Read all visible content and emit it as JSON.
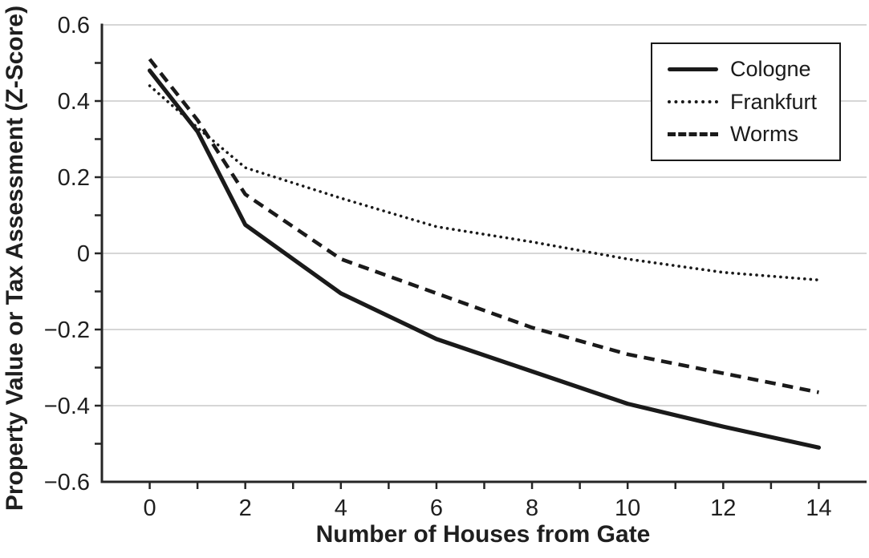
{
  "chart_data": {
    "type": "line",
    "title": "",
    "xlabel": "Number of Houses from Gate",
    "ylabel": "Property Value or Tax Assessment (Z-Score)",
    "x": [
      0,
      1,
      2,
      4,
      6,
      8,
      10,
      12,
      14
    ],
    "series": [
      {
        "name": "Cologne",
        "style": "solid",
        "values": [
          0.48,
          0.32,
          0.075,
          -0.105,
          -0.225,
          -0.31,
          -0.395,
          -0.455,
          -0.51
        ]
      },
      {
        "name": "Frankfurt",
        "style": "dotted",
        "values": [
          0.44,
          0.33,
          0.225,
          0.145,
          0.07,
          0.03,
          -0.015,
          -0.05,
          -0.07
        ]
      },
      {
        "name": "Worms",
        "style": "dashed",
        "values": [
          0.51,
          0.35,
          0.155,
          -0.015,
          -0.105,
          -0.195,
          -0.265,
          -0.315,
          -0.365
        ]
      }
    ],
    "xlim": [
      -1,
      15
    ],
    "ylim": [
      -0.6,
      0.6
    ],
    "xticks": {
      "labeled_values": [
        0,
        2,
        4,
        6,
        8,
        10,
        12,
        14
      ],
      "labels": [
        "0",
        "2",
        "4",
        "6",
        "8",
        "10",
        "12",
        "14"
      ],
      "minor_step": 1
    },
    "yticks": {
      "labeled_values": [
        0.6,
        0.4,
        0.2,
        0,
        -0.2,
        -0.4,
        -0.6
      ],
      "labels": [
        "0.6",
        "0.4",
        "0.2",
        "0",
        "−0.2",
        "−0.4",
        "−0.6"
      ],
      "minor_step": 0.1
    },
    "grid": "horizontal",
    "legend": {
      "position": "top-right",
      "entries": [
        "Cologne",
        "Frankfurt",
        "Worms"
      ]
    },
    "line_color": "#1a1a1a",
    "grid_color": "#d6d6d6",
    "axis_color": "#262626",
    "text_color": "#1f1f1f"
  }
}
